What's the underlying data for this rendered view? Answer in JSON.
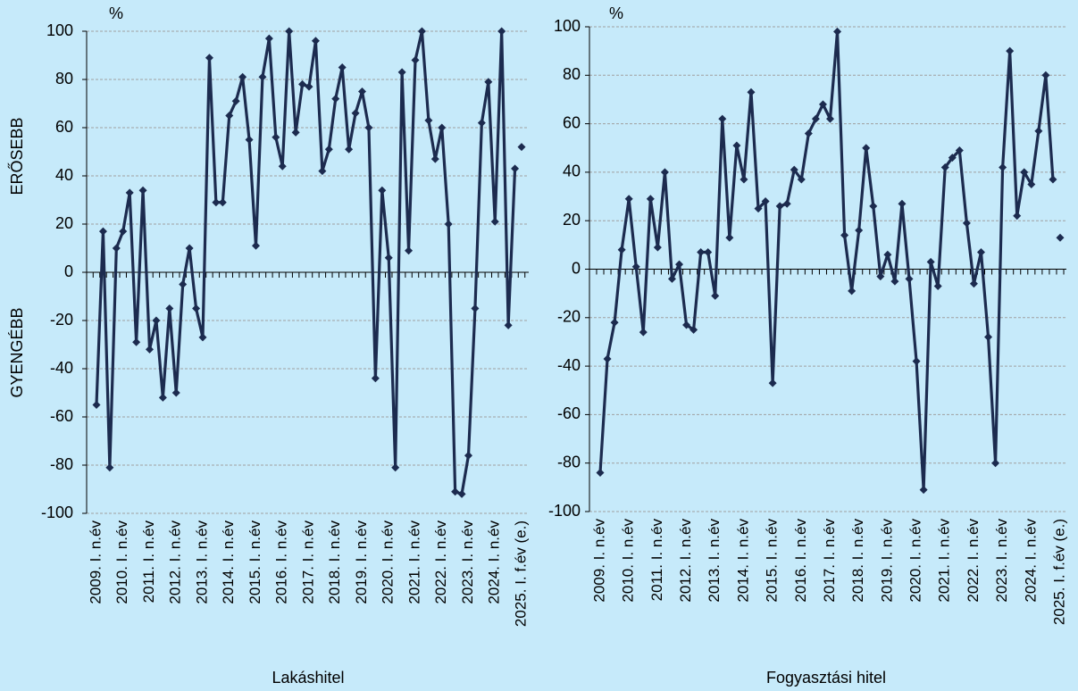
{
  "chart_data": [
    {
      "type": "line",
      "xlabel": "Lakáshitel",
      "unit_label": "%",
      "annotations": [
        "ERŐSEBB",
        "GYENGÉBB"
      ],
      "categories": [
        "2009. I. n.év",
        null,
        null,
        null,
        "2010. I. n.év",
        null,
        null,
        null,
        "2011. I. n.év",
        null,
        null,
        null,
        "2012. I. n.év",
        null,
        null,
        null,
        "2013. I. n.év",
        null,
        null,
        null,
        "2014. I. n.év",
        null,
        null,
        null,
        "2015. I. n.év",
        null,
        null,
        null,
        "2016. I. n.év",
        null,
        null,
        null,
        "2017. I. n.év",
        null,
        null,
        null,
        "2018. I. n.év",
        null,
        null,
        null,
        "2019. I. n.év",
        null,
        null,
        null,
        "2020. I. n.év",
        null,
        null,
        null,
        "2021. I. n.év",
        null,
        null,
        null,
        "2022. I. n.év",
        null,
        null,
        null,
        "2023. I. n.év",
        null,
        null,
        null,
        "2024. I. n.év",
        null,
        null,
        null,
        "2025. I. f.év (e.)"
      ],
      "series": [
        {
          "color": "#1c2b4f",
          "values": [
            -55,
            17,
            -81,
            10,
            17,
            33,
            -29,
            34,
            -32,
            -20,
            -52,
            -15,
            -50,
            -5,
            10,
            -15,
            -27,
            89,
            29,
            29,
            65,
            71,
            81,
            55,
            11,
            81,
            97,
            56,
            44,
            100,
            58,
            78,
            77,
            96,
            42,
            51,
            72,
            85,
            51,
            66,
            75,
            60,
            -44,
            34,
            6,
            -81,
            83,
            9,
            88,
            100,
            63,
            47,
            60,
            20,
            -91,
            -92,
            -76,
            -15,
            62,
            79,
            21,
            100,
            -22,
            43,
            null
          ]
        },
        {
          "color": "#1c2b4f",
          "values": [
            null,
            null,
            null,
            null,
            null,
            null,
            null,
            null,
            null,
            null,
            null,
            null,
            null,
            null,
            null,
            null,
            null,
            null,
            null,
            null,
            null,
            null,
            null,
            null,
            null,
            null,
            null,
            null,
            null,
            null,
            null,
            null,
            null,
            null,
            null,
            null,
            null,
            null,
            null,
            null,
            null,
            null,
            null,
            null,
            null,
            null,
            null,
            null,
            null,
            null,
            null,
            null,
            null,
            null,
            null,
            null,
            null,
            null,
            null,
            null,
            null,
            null,
            null,
            null,
            52
          ]
        }
      ],
      "ylim": [
        -100,
        100
      ],
      "yticks": [
        -100,
        -80,
        -60,
        -40,
        -20,
        0,
        20,
        40,
        60,
        80,
        100
      ],
      "grid": true
    },
    {
      "type": "line",
      "xlabel": "Fogyasztási hitel",
      "unit_label": "%",
      "categories": [
        "2009. I. n.év",
        null,
        null,
        null,
        "2010. I. n.év",
        null,
        null,
        null,
        "2011. I. n.év",
        null,
        null,
        null,
        "2012. I. n.év",
        null,
        null,
        null,
        "2013. I. n.év",
        null,
        null,
        null,
        "2014. I. n.év",
        null,
        null,
        null,
        "2015. I. n.év",
        null,
        null,
        null,
        "2016. I. n.év",
        null,
        null,
        null,
        "2017. I. n.év",
        null,
        null,
        null,
        "2018. I. n.év",
        null,
        null,
        null,
        "2019. I. n.év",
        null,
        null,
        null,
        "2020. I. n.év",
        null,
        null,
        null,
        "2021. I. n.év",
        null,
        null,
        null,
        "2022. I. n.év",
        null,
        null,
        null,
        "2023. I. n.év",
        null,
        null,
        null,
        "2024. I. n.év",
        null,
        null,
        null,
        "2025. I. f.év (e.)"
      ],
      "series": [
        {
          "color": "#1c2b4f",
          "values": [
            -84,
            -37,
            -22,
            8,
            29,
            1,
            -26,
            29,
            9,
            40,
            -4,
            2,
            -23,
            -25,
            7,
            7,
            -11,
            62,
            13,
            51,
            37,
            73,
            25,
            28,
            -47,
            26,
            27,
            41,
            37,
            56,
            62,
            68,
            62,
            98,
            14,
            -9,
            16,
            50,
            26,
            -3,
            6,
            -5,
            27,
            -4,
            -38,
            -91,
            3,
            -7,
            42,
            46,
            49,
            19,
            -6,
            7,
            -28,
            -80,
            42,
            90,
            22,
            40,
            35,
            57,
            80,
            37,
            null
          ]
        },
        {
          "color": "#1c2b4f",
          "values": [
            null,
            null,
            null,
            null,
            null,
            null,
            null,
            null,
            null,
            null,
            null,
            null,
            null,
            null,
            null,
            null,
            null,
            null,
            null,
            null,
            null,
            null,
            null,
            null,
            null,
            null,
            null,
            null,
            null,
            null,
            null,
            null,
            null,
            null,
            null,
            null,
            null,
            null,
            null,
            null,
            null,
            null,
            null,
            null,
            null,
            null,
            null,
            null,
            null,
            null,
            null,
            null,
            null,
            null,
            null,
            null,
            null,
            null,
            null,
            null,
            null,
            null,
            null,
            null,
            13
          ]
        }
      ],
      "ylim": [
        -100,
        100
      ],
      "yticks": [
        -100,
        -80,
        -60,
        -40,
        -20,
        0,
        20,
        40,
        60,
        80,
        100
      ],
      "grid": true
    }
  ]
}
